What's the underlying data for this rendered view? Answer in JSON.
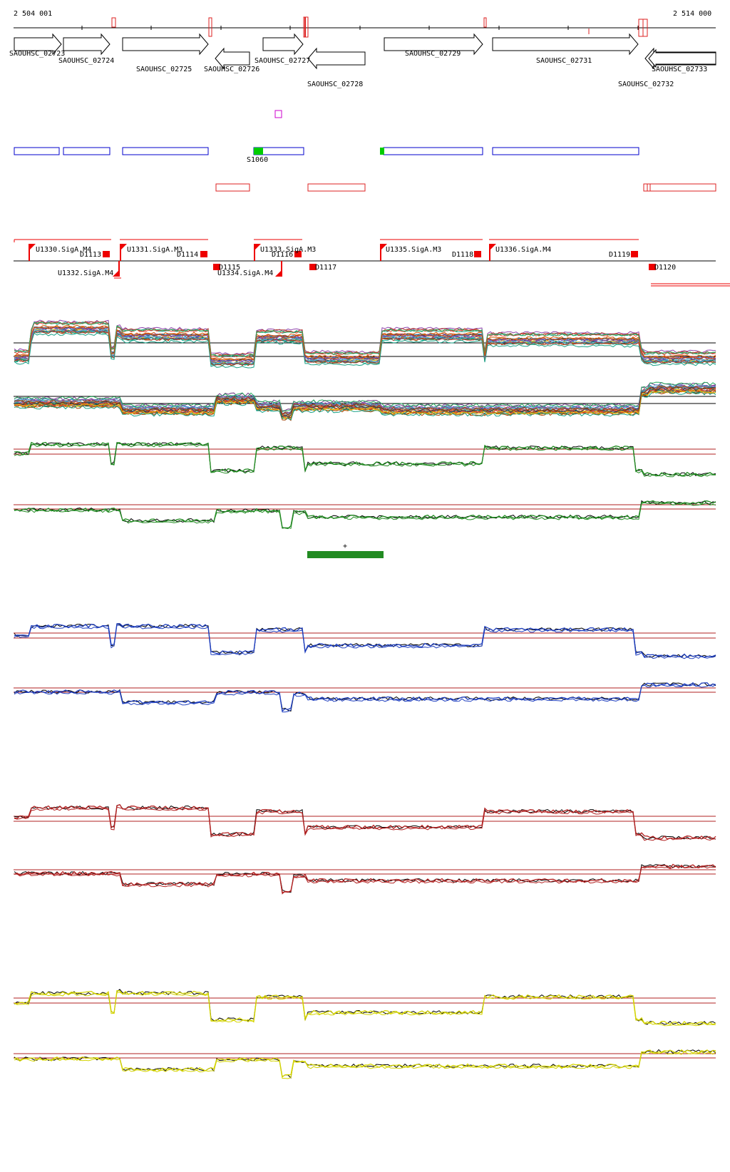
{
  "coords": {
    "start_label": "2 504 001",
    "end_label": "2 514 000"
  },
  "genes": [
    {
      "name": "SAOUHSC_02723",
      "strand": "+"
    },
    {
      "name": "SAOUHSC_02724",
      "strand": "+"
    },
    {
      "name": "SAOUHSC_02725",
      "strand": "+"
    },
    {
      "name": "SAOUHSC_02726",
      "strand": "-"
    },
    {
      "name": "SAOUHSC_02727",
      "strand": "+"
    },
    {
      "name": "SAOUHSC_02728",
      "strand": "-"
    },
    {
      "name": "SAOUHSC_02729",
      "strand": "+"
    },
    {
      "name": "SAOUHSC_02731",
      "strand": "+"
    },
    {
      "name": "SAOUHSC_02732",
      "strand": "-"
    },
    {
      "name": "SAOUHSC_02733",
      "strand": "-"
    }
  ],
  "srna": {
    "label": "S1060"
  },
  "promoters_fwd": [
    "U1330.SigA.M4",
    "U1331.SigA.M3",
    "U1333.SigA.M3",
    "U1335.SigA.M3",
    "U1336.SigA.M4"
  ],
  "promoters_rev": [
    "U1332.SigA.M4",
    "U1334.SigA.M4"
  ],
  "terminators": [
    "D1113",
    "D1114",
    "D1115",
    "D1116",
    "D1117",
    "D1118",
    "D1119",
    "D1120"
  ],
  "marker": {
    "label": "+"
  },
  "colors": {
    "gene_outline": "#000000",
    "feature_blue": "#0000cc",
    "feature_red": "#dd2222",
    "srna_green": "#00cc00",
    "promoter_red": "#ee0000",
    "track_green": "#228b22",
    "track_blue": "#1f3fbf",
    "track_red": "#b22222",
    "track_yellow": "#d4d400",
    "magenta": "#cc00cc"
  }
}
